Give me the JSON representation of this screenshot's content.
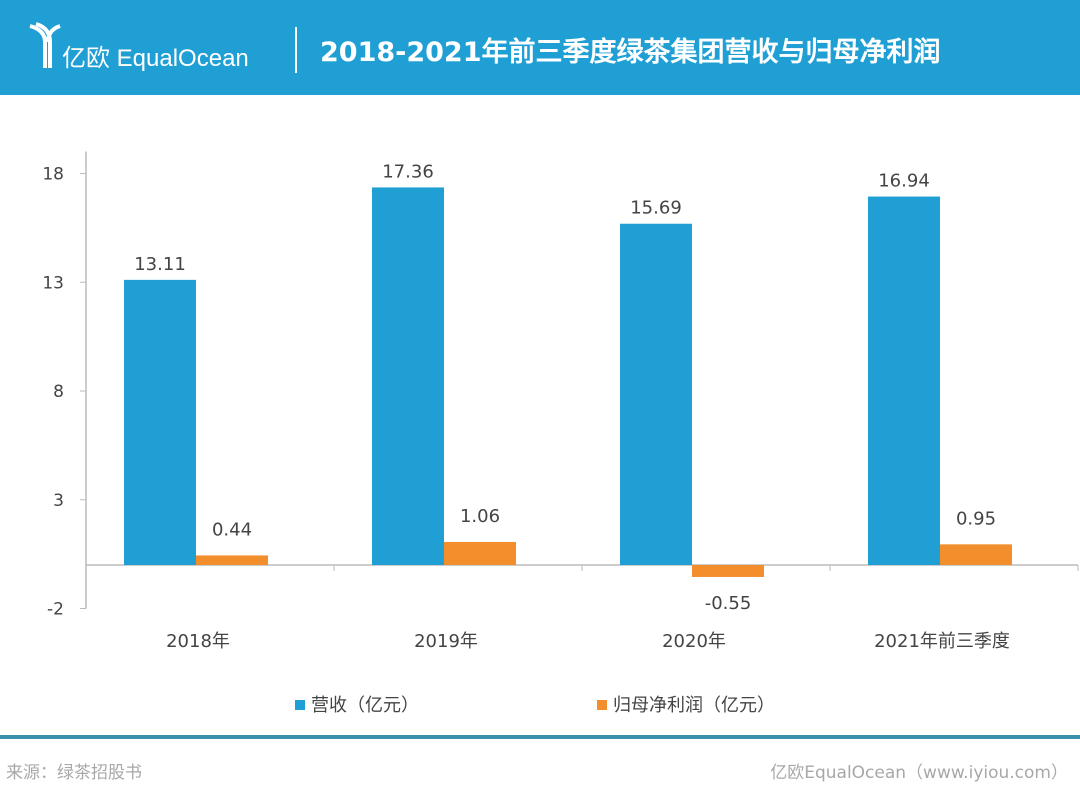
{
  "header": {
    "brand": "亿欧 EqualOcean",
    "title": "2018-2021年前三季度绿茶集团营收与归母净利润"
  },
  "footer": {
    "source": "来源：绿茶招股书",
    "site": "亿欧EqualOcean（www.iyiou.com）"
  },
  "colors": {
    "header": "#1f9fd4",
    "revenue": "#1f9fd4",
    "profit": "#f28e2b"
  },
  "chart_data": {
    "type": "bar",
    "categories": [
      "2018年",
      "2019年",
      "2020年",
      "2021年前三季度"
    ],
    "series": [
      {
        "name": "营收（亿元）",
        "values": [
          13.11,
          17.36,
          15.69,
          16.94
        ]
      },
      {
        "name": "归母净利润（亿元）",
        "values": [
          0.44,
          1.06,
          -0.55,
          0.95
        ]
      }
    ],
    "yticks": [
      18,
      13,
      8,
      3,
      -2
    ],
    "ylim": [
      -2,
      18
    ],
    "legend": "bottom",
    "grid": false
  }
}
